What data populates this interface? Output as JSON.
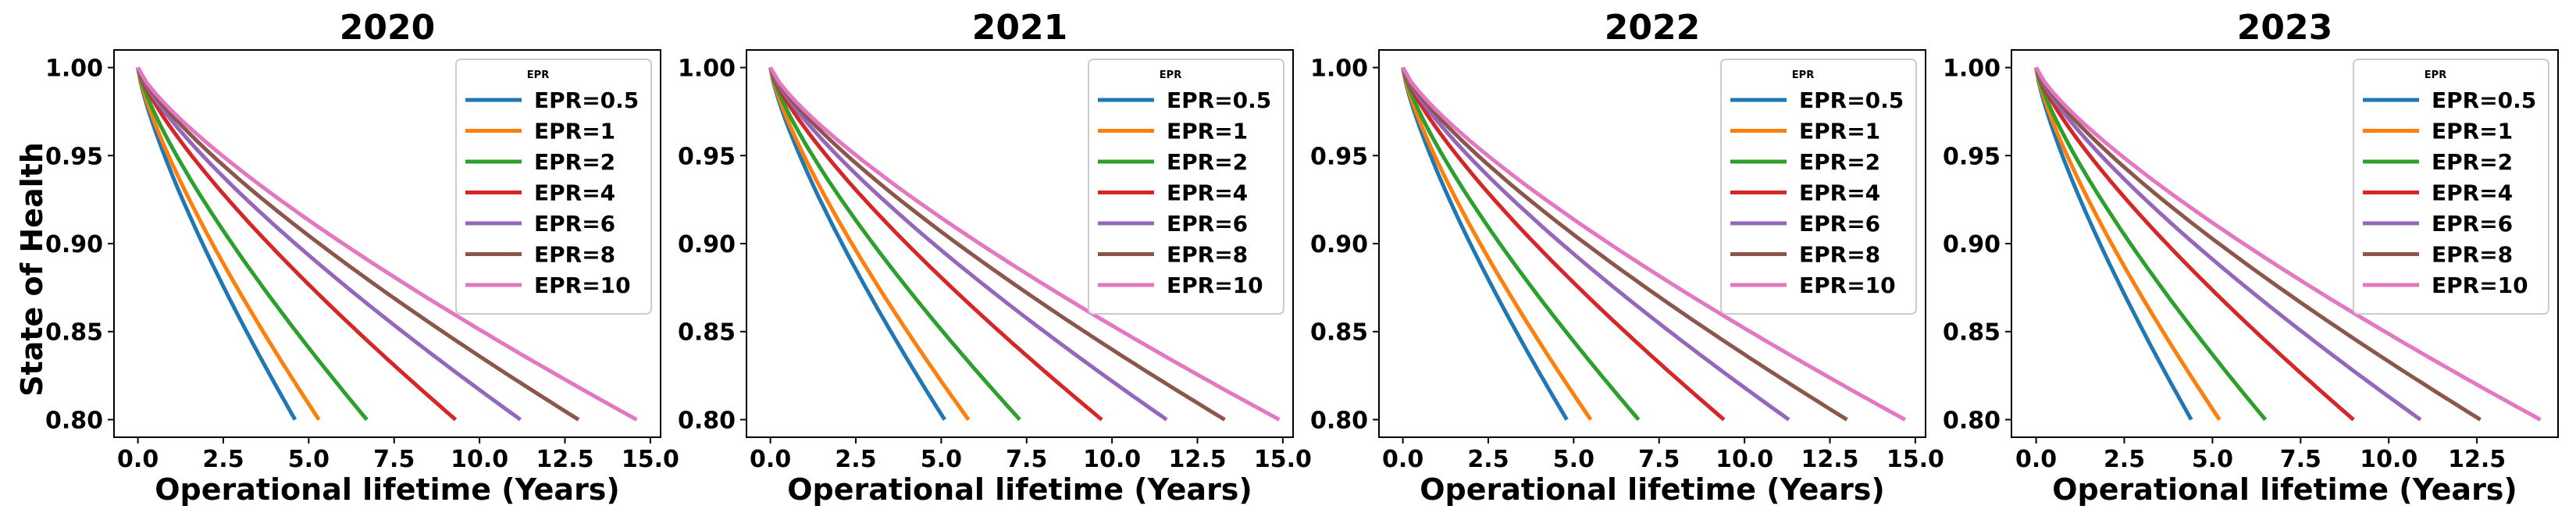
{
  "figure": {
    "ylabel": "State of Health"
  },
  "chart_data": [
    {
      "type": "line",
      "title": "2020",
      "xlabel": "Operational lifetime (Years)",
      "ylabel": "State of Health",
      "xlim": [
        -0.7,
        15.3
      ],
      "ylim": [
        0.79,
        1.01
      ],
      "xticks": [
        0.0,
        2.5,
        5.0,
        7.5,
        10.0,
        12.5,
        15.0
      ],
      "xtick_labels": [
        "0.0",
        "2.5",
        "5.0",
        "7.5",
        "10.0",
        "12.5",
        "15.0"
      ],
      "yticks": [
        0.8,
        0.85,
        0.9,
        0.95,
        1.0
      ],
      "ytick_labels": [
        "0.80",
        "0.85",
        "0.90",
        "0.95",
        "1.00"
      ],
      "legend_title": "EPR",
      "legend_position": "top-right",
      "series": [
        {
          "name": "EPR=0.5",
          "color": "#1f77b4",
          "end_x": 4.6
        },
        {
          "name": "EPR=1",
          "color": "#ff7f0e",
          "end_x": 5.3
        },
        {
          "name": "EPR=2",
          "color": "#2ca02c",
          "end_x": 6.7
        },
        {
          "name": "EPR=4",
          "color": "#d62728",
          "end_x": 9.3
        },
        {
          "name": "EPR=6",
          "color": "#9467bd",
          "end_x": 11.2
        },
        {
          "name": "EPR=8",
          "color": "#8c564b",
          "end_x": 12.9
        },
        {
          "name": "EPR=10",
          "color": "#e377c2",
          "end_x": 14.6
        }
      ]
    },
    {
      "type": "line",
      "title": "2021",
      "xlabel": "Operational lifetime (Years)",
      "ylabel": "",
      "xlim": [
        -0.7,
        15.3
      ],
      "ylim": [
        0.79,
        1.01
      ],
      "xticks": [
        0.0,
        2.5,
        5.0,
        7.5,
        10.0,
        12.5,
        15.0
      ],
      "xtick_labels": [
        "0.0",
        "2.5",
        "5.0",
        "7.5",
        "10.0",
        "12.5",
        "15.0"
      ],
      "yticks": [
        0.8,
        0.85,
        0.9,
        0.95,
        1.0
      ],
      "ytick_labels": [
        "0.80",
        "0.85",
        "0.90",
        "0.95",
        "1.00"
      ],
      "legend_title": "EPR",
      "legend_position": "top-right",
      "series": [
        {
          "name": "EPR=0.5",
          "color": "#1f77b4",
          "end_x": 5.1
        },
        {
          "name": "EPR=1",
          "color": "#ff7f0e",
          "end_x": 5.8
        },
        {
          "name": "EPR=2",
          "color": "#2ca02c",
          "end_x": 7.3
        },
        {
          "name": "EPR=4",
          "color": "#d62728",
          "end_x": 9.7
        },
        {
          "name": "EPR=6",
          "color": "#9467bd",
          "end_x": 11.6
        },
        {
          "name": "EPR=8",
          "color": "#8c564b",
          "end_x": 13.3
        },
        {
          "name": "EPR=10",
          "color": "#e377c2",
          "end_x": 14.9
        }
      ]
    },
    {
      "type": "line",
      "title": "2022",
      "xlabel": "Operational lifetime (Years)",
      "ylabel": "",
      "xlim": [
        -0.7,
        15.3
      ],
      "ylim": [
        0.79,
        1.01
      ],
      "xticks": [
        0.0,
        2.5,
        5.0,
        7.5,
        10.0,
        12.5,
        15.0
      ],
      "xtick_labels": [
        "0.0",
        "2.5",
        "5.0",
        "7.5",
        "10.0",
        "12.5",
        "15.0"
      ],
      "yticks": [
        0.8,
        0.85,
        0.9,
        0.95,
        1.0
      ],
      "ytick_labels": [
        "0.80",
        "0.85",
        "0.90",
        "0.95",
        "1.00"
      ],
      "legend_title": "EPR",
      "legend_position": "top-right",
      "series": [
        {
          "name": "EPR=0.5",
          "color": "#1f77b4",
          "end_x": 4.8
        },
        {
          "name": "EPR=1",
          "color": "#ff7f0e",
          "end_x": 5.5
        },
        {
          "name": "EPR=2",
          "color": "#2ca02c",
          "end_x": 6.9
        },
        {
          "name": "EPR=4",
          "color": "#d62728",
          "end_x": 9.4
        },
        {
          "name": "EPR=6",
          "color": "#9467bd",
          "end_x": 11.3
        },
        {
          "name": "EPR=8",
          "color": "#8c564b",
          "end_x": 13.0
        },
        {
          "name": "EPR=10",
          "color": "#e377c2",
          "end_x": 14.7
        }
      ]
    },
    {
      "type": "line",
      "title": "2023",
      "xlabel": "Operational lifetime (Years)",
      "ylabel": "",
      "xlim": [
        -0.7,
        14.8
      ],
      "ylim": [
        0.79,
        1.01
      ],
      "xticks": [
        0.0,
        2.5,
        5.0,
        7.5,
        10.0,
        12.5
      ],
      "xtick_labels": [
        "0.0",
        "2.5",
        "5.0",
        "7.5",
        "10.0",
        "12.5"
      ],
      "yticks": [
        0.8,
        0.85,
        0.9,
        0.95,
        1.0
      ],
      "ytick_labels": [
        "0.80",
        "0.85",
        "0.90",
        "0.95",
        "1.00"
      ],
      "legend_title": "EPR",
      "legend_position": "top-right",
      "series": [
        {
          "name": "EPR=0.5",
          "color": "#1f77b4",
          "end_x": 4.4
        },
        {
          "name": "EPR=1",
          "color": "#ff7f0e",
          "end_x": 5.2
        },
        {
          "name": "EPR=2",
          "color": "#2ca02c",
          "end_x": 6.5
        },
        {
          "name": "EPR=4",
          "color": "#d62728",
          "end_x": 9.0
        },
        {
          "name": "EPR=6",
          "color": "#9467bd",
          "end_x": 10.9
        },
        {
          "name": "EPR=8",
          "color": "#8c564b",
          "end_x": 12.6
        },
        {
          "name": "EPR=10",
          "color": "#e377c2",
          "end_x": 14.3
        }
      ]
    }
  ]
}
